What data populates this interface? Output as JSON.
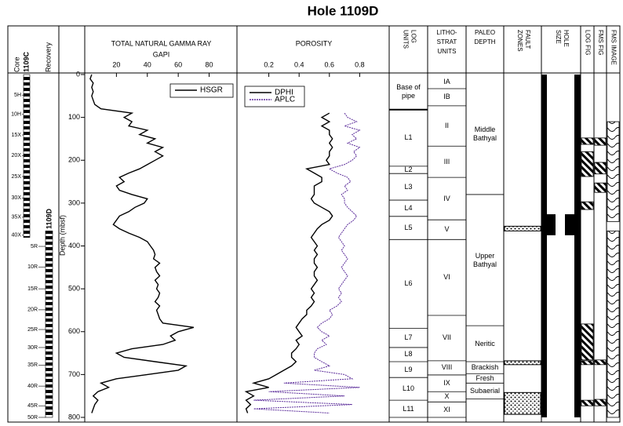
{
  "title": "Hole 1109D",
  "core": {
    "heading": "Core",
    "recovery_heading": "Recovery",
    "holes": [
      {
        "name": "1109C",
        "top": 0,
        "bottom": 380,
        "cores": [
          {
            "label": "5H",
            "depth": 48
          },
          {
            "label": "10H",
            "depth": 93
          },
          {
            "label": "15X",
            "depth": 141
          },
          {
            "label": "20X",
            "depth": 189
          },
          {
            "label": "25X",
            "depth": 238
          },
          {
            "label": "30X",
            "depth": 288
          },
          {
            "label": "35X",
            "depth": 333
          },
          {
            "label": "40X",
            "depth": 375
          }
        ]
      },
      {
        "name": "1109D",
        "top": 365,
        "bottom": 800,
        "cores": [
          {
            "label": "5R",
            "depth": 401
          },
          {
            "label": "10R",
            "depth": 449
          },
          {
            "label": "15R",
            "depth": 500
          },
          {
            "label": "20R",
            "depth": 549
          },
          {
            "label": "25R",
            "depth": 595
          },
          {
            "label": "30R",
            "depth": 637
          },
          {
            "label": "35R",
            "depth": 678
          },
          {
            "label": "40R",
            "depth": 727
          },
          {
            "label": "45R",
            "depth": 773
          },
          {
            "label": "50R",
            "depth": 800
          }
        ]
      }
    ]
  },
  "chart_data": [
    {
      "type": "line",
      "title": "TOTAL NATURAL GAMMA RAY",
      "xlabel": "GAPI",
      "xlim": [
        0,
        98
      ],
      "xticks": [
        20,
        40,
        60,
        80
      ],
      "ylabel": "Depth (mbsf)",
      "ylim": [
        0,
        800
      ],
      "yticks": [
        0,
        100,
        200,
        300,
        400,
        500,
        600,
        700,
        800
      ],
      "y": [
        0,
        10,
        20,
        30,
        40,
        50,
        60,
        70,
        80,
        90,
        100,
        110,
        120,
        130,
        140,
        150,
        160,
        170,
        180,
        190,
        200,
        210,
        220,
        230,
        240,
        250,
        260,
        270,
        280,
        290,
        300,
        310,
        320,
        330,
        340,
        350,
        360,
        370,
        380,
        390,
        400,
        410,
        420,
        430,
        440,
        450,
        460,
        470,
        480,
        490,
        500,
        510,
        520,
        530,
        540,
        550,
        560,
        570,
        580,
        590,
        600,
        610,
        620,
        630,
        640,
        650,
        660,
        670,
        680,
        690,
        700,
        710,
        720,
        730,
        740,
        750,
        760,
        770,
        780,
        790
      ],
      "series": [
        {
          "name": "HSGR",
          "color": "#000000",
          "values": [
            4,
            3,
            5,
            4,
            5,
            4,
            5,
            6,
            10,
            30,
            25,
            30,
            28,
            40,
            35,
            45,
            40,
            50,
            45,
            50,
            45,
            40,
            35,
            28,
            22,
            25,
            20,
            22,
            30,
            40,
            38,
            32,
            28,
            22,
            20,
            18,
            22,
            28,
            35,
            40,
            42,
            44,
            45,
            44,
            48,
            45,
            46,
            48,
            45,
            47,
            46,
            48,
            47,
            45,
            48,
            46,
            47,
            48,
            50,
            70,
            60,
            55,
            58,
            50,
            30,
            20,
            25,
            45,
            65,
            60,
            40,
            20,
            10,
            15,
            8,
            5,
            8,
            6,
            5,
            4
          ]
        }
      ]
    },
    {
      "type": "line",
      "title": "POROSITY",
      "xlim": [
        0,
        1
      ],
      "xticks": [
        0.2,
        0.4,
        0.6,
        0.8
      ],
      "series": [
        {
          "name": "DPHI",
          "color": "#000000",
          "values": [
            null,
            null,
            null,
            null,
            null,
            null,
            null,
            null,
            null,
            0.6,
            0.55,
            0.6,
            0.55,
            0.6,
            0.6,
            0.62,
            0.6,
            0.62,
            0.6,
            0.6,
            0.58,
            0.6,
            0.45,
            0.5,
            0.55,
            0.55,
            0.5,
            0.5,
            0.5,
            0.48,
            0.5,
            0.55,
            0.6,
            0.62,
            0.6,
            0.55,
            0.52,
            0.5,
            0.48,
            0.5,
            0.52,
            0.5,
            0.52,
            0.5,
            0.5,
            0.52,
            0.5,
            0.5,
            0.52,
            0.5,
            0.48,
            0.5,
            0.48,
            0.5,
            0.48,
            0.45,
            0.45,
            0.42,
            0.4,
            0.38,
            0.4,
            0.42,
            0.38,
            0.4,
            0.38,
            0.35,
            0.35,
            0.38,
            0.35,
            0.3,
            0.25,
            0.2,
            0.1,
            0.2,
            0.05,
            0.1,
            0.05,
            0.08,
            0.05,
            0.06
          ]
        },
        {
          "name": "APLC",
          "color": "#5b2c9a",
          "values": [
            null,
            null,
            null,
            null,
            null,
            null,
            null,
            null,
            null,
            0.7,
            0.72,
            0.78,
            0.7,
            0.8,
            0.75,
            0.78,
            0.72,
            0.8,
            0.76,
            0.78,
            0.75,
            0.7,
            0.6,
            0.65,
            0.72,
            0.74,
            0.7,
            0.72,
            0.68,
            0.7,
            0.7,
            0.72,
            0.75,
            0.78,
            0.76,
            0.72,
            0.7,
            0.68,
            0.66,
            0.68,
            0.7,
            0.68,
            0.7,
            0.72,
            0.7,
            0.68,
            0.7,
            0.72,
            0.7,
            0.68,
            0.66,
            0.68,
            0.66,
            0.68,
            0.65,
            0.6,
            0.62,
            0.6,
            0.55,
            0.52,
            0.55,
            0.6,
            0.55,
            0.58,
            0.52,
            0.5,
            0.5,
            0.55,
            0.6,
            0.5,
            0.7,
            0.75,
            0.3,
            0.8,
            0.2,
            0.7,
            0.1,
            0.75,
            0.1,
            0.6
          ]
        }
      ]
    }
  ],
  "columns": {
    "log_units": {
      "heading": [
        "LOG",
        "UNITS"
      ],
      "units": [
        {
          "label": "Base of pipe",
          "top": 0,
          "bottom": 82
        },
        {
          "label": "L1",
          "top": 82,
          "bottom": 214
        },
        {
          "label": "L2",
          "top": 214,
          "bottom": 231
        },
        {
          "label": "L3",
          "top": 231,
          "bottom": 293
        },
        {
          "label": "L4",
          "top": 293,
          "bottom": 331
        },
        {
          "label": "L5",
          "top": 331,
          "bottom": 385
        },
        {
          "label": "L6",
          "top": 385,
          "bottom": 592
        },
        {
          "label": "L7",
          "top": 592,
          "bottom": 637
        },
        {
          "label": "L8",
          "top": 637,
          "bottom": 670
        },
        {
          "label": "L9",
          "top": 670,
          "bottom": 707
        },
        {
          "label": "L10",
          "top": 707,
          "bottom": 760
        },
        {
          "label": "L11",
          "top": 760,
          "bottom": 800
        }
      ]
    },
    "litho_strat_units": {
      "heading": [
        "LITHO-",
        "STRAT",
        "UNITS"
      ],
      "units": [
        {
          "label": "IA",
          "top": 0,
          "bottom": 33
        },
        {
          "label": "IB",
          "top": 33,
          "bottom": 73
        },
        {
          "label": "II",
          "top": 73,
          "bottom": 167
        },
        {
          "label": "III",
          "top": 167,
          "bottom": 240
        },
        {
          "label": "IV",
          "top": 240,
          "bottom": 339
        },
        {
          "label": "V",
          "top": 339,
          "bottom": 385
        },
        {
          "label": "VI",
          "top": 385,
          "bottom": 562
        },
        {
          "label": "VII",
          "top": 562,
          "bottom": 668
        },
        {
          "label": "VIII",
          "top": 668,
          "bottom": 701
        },
        {
          "label": "IX",
          "top": 701,
          "bottom": 740
        },
        {
          "label": "X",
          "top": 740,
          "bottom": 764
        },
        {
          "label": "XI",
          "top": 764,
          "bottom": 800
        }
      ]
    },
    "paleo_depth": {
      "heading": [
        "PALEO",
        "DEPTH"
      ],
      "units": [
        {
          "label": "Middle Bathyal",
          "top": 0,
          "bottom": 280
        },
        {
          "label": "Upper Bathyal",
          "top": 280,
          "bottom": 586
        },
        {
          "label": "Neritic",
          "top": 586,
          "bottom": 670
        },
        {
          "label": "Brackish",
          "top": 670,
          "bottom": 698
        },
        {
          "label": "Fresh",
          "top": 698,
          "bottom": 720
        },
        {
          "label": "Subaerial",
          "top": 720,
          "bottom": 757
        }
      ]
    },
    "fault_zones": {
      "heading": [
        "FAULT",
        "ZONES"
      ],
      "intervals": [
        {
          "top": 354,
          "bottom": 365
        },
        {
          "top": 668,
          "bottom": 677
        },
        {
          "top": 742,
          "bottom": 793
        }
      ]
    },
    "hole_size": {
      "heading": [
        "HOLE",
        "SIZE"
      ],
      "enlarged": [
        {
          "top": 326,
          "bottom": 375
        }
      ]
    },
    "log_fig": {
      "heading": [
        "LOG FIG"
      ],
      "intervals": [
        {
          "top": 148,
          "bottom": 163
        },
        {
          "top": 180,
          "bottom": 238
        },
        {
          "top": 297,
          "bottom": 315
        },
        {
          "top": 582,
          "bottom": 666
        },
        {
          "top": 668,
          "bottom": 677
        },
        {
          "top": 760,
          "bottom": 773
        }
      ]
    },
    "fms_fig": {
      "heading": [
        "FMS FIG"
      ],
      "intervals": [
        {
          "top": 148,
          "bottom": 165
        },
        {
          "top": 205,
          "bottom": 232
        },
        {
          "top": 253,
          "bottom": 275
        },
        {
          "top": 666,
          "bottom": 677
        },
        {
          "top": 758,
          "bottom": 773
        }
      ]
    },
    "fms_image": {
      "heading": [
        "FMS IMAGE"
      ],
      "intervals": [
        {
          "top": 110,
          "bottom": 343
        },
        {
          "top": 365,
          "bottom": 800
        }
      ]
    }
  }
}
